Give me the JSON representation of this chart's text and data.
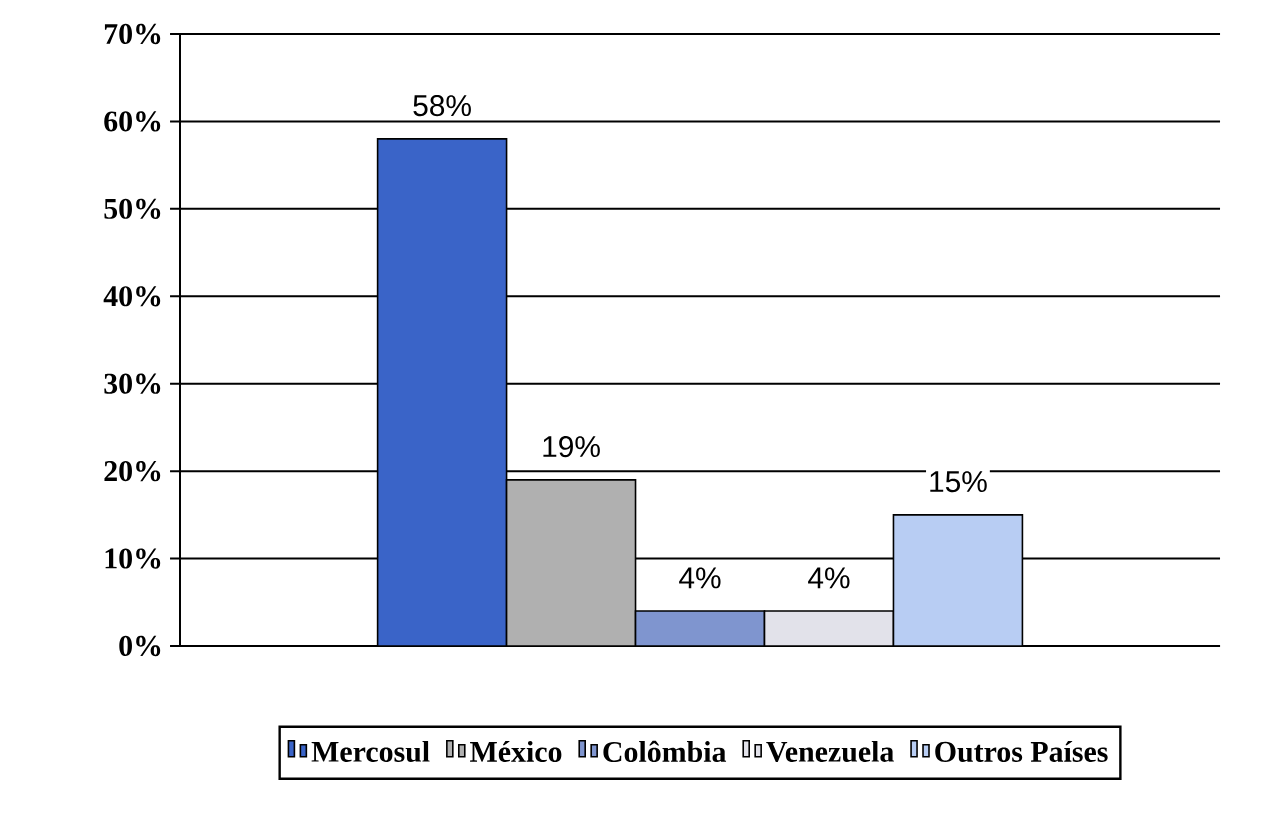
{
  "chart_data": {
    "type": "bar",
    "categories": [
      null
    ],
    "series": [
      {
        "name": "Mercosul",
        "color": "#3a64c8",
        "values": [
          58
        ],
        "value_labels": [
          "58%"
        ]
      },
      {
        "name": "México",
        "color": "#b0b0b0",
        "values": [
          19
        ],
        "value_labels": [
          "19%"
        ]
      },
      {
        "name": "Colômbia",
        "color": "#7f95cf",
        "values": [
          4
        ],
        "value_labels": [
          "4%"
        ]
      },
      {
        "name": "Venezuela",
        "color": "#e2e2ea",
        "values": [
          4
        ],
        "value_labels": [
          "4%"
        ]
      },
      {
        "name": "Outros Países",
        "color": "#b8cdf3",
        "values": [
          15
        ],
        "value_labels": [
          "15%"
        ]
      }
    ],
    "ylim": [
      0,
      70
    ],
    "yticks": [
      {
        "value": 0,
        "label": "0%"
      },
      {
        "value": 10,
        "label": "10%"
      },
      {
        "value": 20,
        "label": "20%"
      },
      {
        "value": 30,
        "label": "30%"
      },
      {
        "value": 40,
        "label": "40%"
      },
      {
        "value": 50,
        "label": "50%"
      },
      {
        "value": 60,
        "label": "60%"
      },
      {
        "value": 70,
        "label": "70%"
      }
    ],
    "grid": "y",
    "legend": "bottom"
  }
}
